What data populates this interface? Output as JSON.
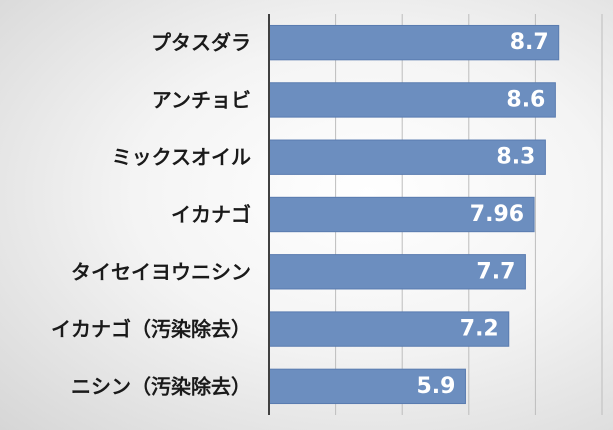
{
  "chart_data": {
    "type": "bar",
    "orientation": "horizontal",
    "categories": [
      "プタスダラ",
      "アンチョビ",
      "ミックスオイル",
      "イカナゴ",
      "タイセイヨウニシン",
      "イカナゴ（汚染除去）",
      "ニシン（汚染除去）"
    ],
    "values": [
      8.7,
      8.6,
      8.3,
      7.96,
      7.7,
      7.2,
      5.9
    ],
    "value_labels": [
      "8.7",
      "8.6",
      "8.3",
      "7.96",
      "7.7",
      "7.2",
      "5.9"
    ],
    "xlim": [
      0,
      10
    ],
    "grid": "vertical",
    "legend": "none",
    "colors": {
      "bar": "#6c8ebf",
      "bar_edge": "#5a7cb0",
      "grid": "#bdbdbd",
      "axis": "#404040"
    }
  }
}
